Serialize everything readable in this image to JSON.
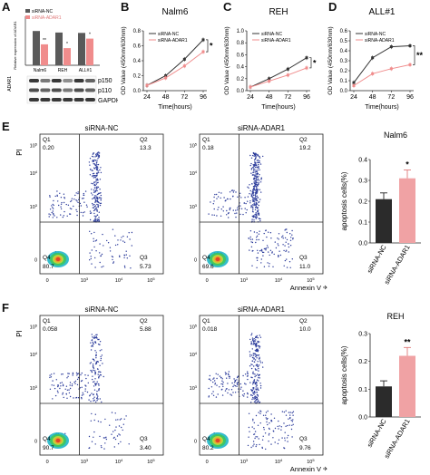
{
  "panel_letters": {
    "a": "A",
    "b": "B",
    "c": "C",
    "d": "D",
    "e": "E",
    "f": "F"
  },
  "colors": {
    "nc": "#606060",
    "adar1": "#f08c8c",
    "bar_nc": "#2b2b2b",
    "bar_adar1": "#f0a2a4"
  },
  "panelA": {
    "ylabel": "Relative expression of ADAR1",
    "legend": [
      "siRNA-NC",
      "siRNA-ADAR1"
    ],
    "categories": [
      "Nalm6",
      "REH",
      "ALL#1"
    ],
    "sig": [
      "**",
      "*",
      "*"
    ],
    "blot_title": "ADAR1",
    "blot_labels": [
      "p150",
      "p110",
      "GAPDH"
    ]
  },
  "line_common": {
    "xlabel": "Time(hours)",
    "ylabel": "OD Value (450nm/630nm)",
    "legend": [
      "siRNA-NC",
      "siRNA-ADAR1"
    ],
    "xticks": [
      "24",
      "48",
      "72",
      "96"
    ]
  },
  "chart_data": [
    {
      "type": "line",
      "title": "Nalm6",
      "x": [
        24,
        48,
        72,
        96
      ],
      "ylim": [
        0,
        0.8
      ],
      "yticks": [
        "0.0",
        "0.2",
        "0.4",
        "0.6",
        "0.8"
      ],
      "series": [
        {
          "name": "siRNA-NC",
          "values": [
            0.07,
            0.2,
            0.42,
            0.68
          ]
        },
        {
          "name": "siRNA-ADAR1",
          "values": [
            0.07,
            0.17,
            0.33,
            0.52
          ]
        }
      ],
      "sig": "*"
    },
    {
      "type": "line",
      "title": "REH",
      "x": [
        24,
        48,
        72,
        96
      ],
      "ylim": [
        0,
        1.0
      ],
      "yticks": [
        "0.0",
        "0.2",
        "0.4",
        "0.6",
        "0.8",
        "1.0"
      ],
      "series": [
        {
          "name": "siRNA-NC",
          "values": [
            0.06,
            0.2,
            0.36,
            0.55
          ]
        },
        {
          "name": "siRNA-ADAR1",
          "values": [
            0.06,
            0.16,
            0.26,
            0.38
          ]
        }
      ],
      "sig": "*"
    },
    {
      "type": "line",
      "title": "ALL#1",
      "x": [
        24,
        48,
        72,
        96
      ],
      "ylim": [
        0,
        0.6
      ],
      "yticks": [
        "0.0",
        "0.1",
        "0.2",
        "0.3",
        "0.4",
        "0.5",
        "0.6"
      ],
      "series": [
        {
          "name": "siRNA-NC",
          "values": [
            0.08,
            0.33,
            0.44,
            0.45
          ]
        },
        {
          "name": "siRNA-ADAR1",
          "values": [
            0.05,
            0.17,
            0.22,
            0.26
          ]
        }
      ],
      "sig": "**"
    },
    {
      "type": "bar",
      "title": "Nalm6",
      "ylabel": "apoptosis cells(%)",
      "categories": [
        "siRNA-NC",
        "siRNA-ADAR1"
      ],
      "values": [
        0.21,
        0.31
      ],
      "errors": [
        0.03,
        0.04
      ],
      "ylim": [
        0,
        0.4
      ],
      "yticks": [
        "0.0",
        "0.1",
        "0.2",
        "0.3",
        "0.4"
      ],
      "sig": "*"
    },
    {
      "type": "bar",
      "title": "REH",
      "ylabel": "apoptosis cells(%)",
      "categories": [
        "siRNA-NC",
        "siRNA-ADAR1"
      ],
      "values": [
        0.11,
        0.22
      ],
      "errors": [
        0.02,
        0.03
      ],
      "ylim": [
        0,
        0.3
      ],
      "yticks": [
        "0.0",
        "0.1",
        "0.2",
        "0.3"
      ],
      "sig": "**"
    }
  ],
  "flow": {
    "ylabel": "PI",
    "xlabel": "Annexin V",
    "rowE": [
      {
        "title": "siRNA-NC",
        "q1": "0.20",
        "q2": "13.3",
        "q3": "5.73",
        "q4": "80.7"
      },
      {
        "title": "siRNA-ADAR1",
        "q1": "0.18",
        "q2": "19.2",
        "q3": "11.0",
        "q4": "69.6"
      }
    ],
    "rowF": [
      {
        "title": "siRNA-NC",
        "q1": "0.058",
        "q2": "5.88",
        "q3": "3.40",
        "q4": "90.7"
      },
      {
        "title": "siRNA-ADAR1",
        "q1": "0.018",
        "q2": "10.0",
        "q3": "9.76",
        "q4": "80.2"
      }
    ],
    "qnames": {
      "q1": "Q1",
      "q2": "Q2",
      "q3": "Q3",
      "q4": "Q4"
    },
    "yticks": [
      "10^5",
      "10^4",
      "10^3",
      "0"
    ],
    "xticks": [
      "0",
      "10^3",
      "10^4",
      "10^5"
    ]
  }
}
